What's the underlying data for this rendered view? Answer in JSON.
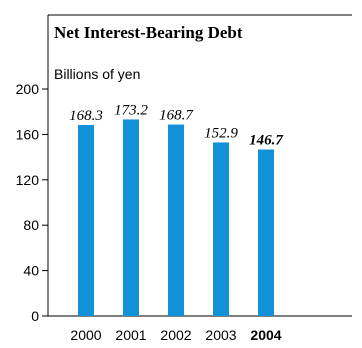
{
  "chart_data": {
    "type": "bar",
    "title": "Net Interest-Bearing Debt",
    "unit_label": "Billions of yen",
    "categories": [
      "2000",
      "2001",
      "2002",
      "2003",
      "2004"
    ],
    "values": [
      168.3,
      173.2,
      168.7,
      152.9,
      146.7
    ],
    "value_labels": [
      "168.3",
      "173.2",
      "168.7",
      "152.9",
      "146.7"
    ],
    "highlight_category": "2004",
    "yticks": [
      "0",
      "40",
      "80",
      "120",
      "160",
      "200"
    ],
    "ylim": [
      0,
      200
    ],
    "bar_color": "#1192d8",
    "grid": false
  }
}
